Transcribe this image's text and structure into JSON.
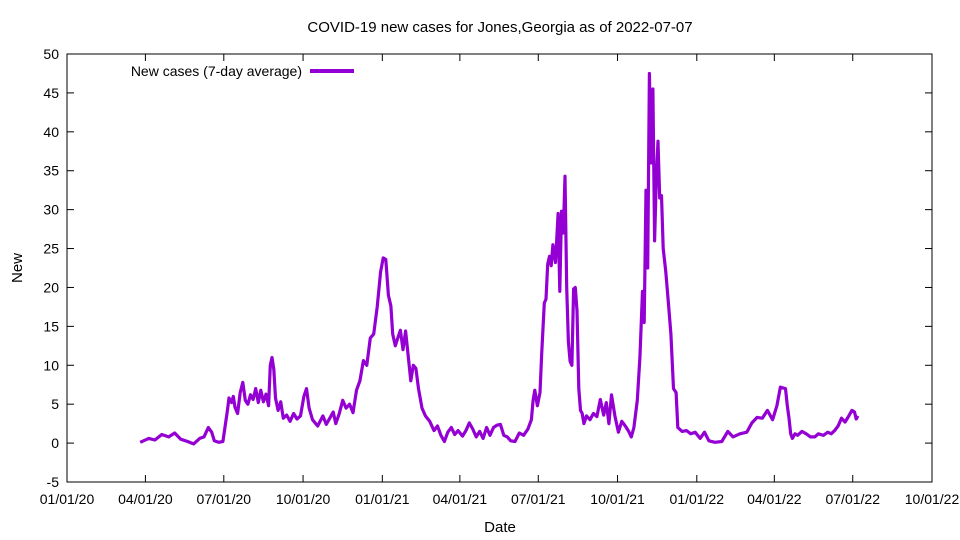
{
  "chart_data": {
    "type": "line",
    "title": "COVID-19 new cases for Jones,Georgia as of 2022-07-07",
    "xlabel": "Date",
    "ylabel": "New",
    "xlim": [
      "2020-01-01",
      "2022-10-01"
    ],
    "ylim": [
      -5,
      50
    ],
    "x_ticks": [
      "01/01/20",
      "04/01/20",
      "07/01/20",
      "10/01/20",
      "01/01/21",
      "04/01/21",
      "07/01/21",
      "10/01/21",
      "01/01/22",
      "04/01/22",
      "07/01/22",
      "10/01/22"
    ],
    "x_tick_dates": [
      "2020-01-01",
      "2020-04-01",
      "2020-07-01",
      "2020-10-01",
      "2021-01-01",
      "2021-04-01",
      "2021-07-01",
      "2021-10-01",
      "2022-01-01",
      "2022-04-01",
      "2022-07-01",
      "2022-10-01"
    ],
    "y_ticks": [
      -5,
      0,
      5,
      10,
      15,
      20,
      25,
      30,
      35,
      40,
      45,
      50
    ],
    "grid": false,
    "legend_position": "top-left",
    "series": [
      {
        "name": "New cases (7-day average)",
        "color": "#9400d3",
        "points": [
          [
            "2020-03-26",
            0.1
          ],
          [
            "2020-04-05",
            0.6
          ],
          [
            "2020-04-12",
            0.4
          ],
          [
            "2020-04-20",
            1.1
          ],
          [
            "2020-04-28",
            0.8
          ],
          [
            "2020-05-05",
            1.3
          ],
          [
            "2020-05-12",
            0.5
          ],
          [
            "2020-05-20",
            0.2
          ],
          [
            "2020-05-27",
            -0.1
          ],
          [
            "2020-06-03",
            0.6
          ],
          [
            "2020-06-08",
            0.8
          ],
          [
            "2020-06-13",
            2.0
          ],
          [
            "2020-06-17",
            1.4
          ],
          [
            "2020-06-20",
            0.3
          ],
          [
            "2020-06-25",
            0.1
          ],
          [
            "2020-06-30",
            0.2
          ],
          [
            "2020-07-02",
            1.8
          ],
          [
            "2020-07-05",
            4.0
          ],
          [
            "2020-07-07",
            5.8
          ],
          [
            "2020-07-10",
            5.2
          ],
          [
            "2020-07-12",
            6.0
          ],
          [
            "2020-07-14",
            4.6
          ],
          [
            "2020-07-17",
            3.8
          ],
          [
            "2020-07-20",
            6.5
          ],
          [
            "2020-07-23",
            7.8
          ],
          [
            "2020-07-26",
            5.5
          ],
          [
            "2020-07-29",
            5.0
          ],
          [
            "2020-08-01",
            6.2
          ],
          [
            "2020-08-04",
            5.6
          ],
          [
            "2020-08-07",
            7.0
          ],
          [
            "2020-08-10",
            5.2
          ],
          [
            "2020-08-13",
            6.8
          ],
          [
            "2020-08-16",
            5.3
          ],
          [
            "2020-08-19",
            6.3
          ],
          [
            "2020-08-22",
            4.8
          ],
          [
            "2020-08-24",
            10.0
          ],
          [
            "2020-08-26",
            11.0
          ],
          [
            "2020-08-28",
            9.5
          ],
          [
            "2020-08-30",
            5.8
          ],
          [
            "2020-09-02",
            4.2
          ],
          [
            "2020-09-05",
            5.3
          ],
          [
            "2020-09-08",
            3.2
          ],
          [
            "2020-09-12",
            3.6
          ],
          [
            "2020-09-16",
            2.8
          ],
          [
            "2020-09-20",
            3.8
          ],
          [
            "2020-09-24",
            3.1
          ],
          [
            "2020-09-28",
            3.5
          ],
          [
            "2020-10-02",
            6.0
          ],
          [
            "2020-10-05",
            7.0
          ],
          [
            "2020-10-08",
            4.5
          ],
          [
            "2020-10-12",
            3.0
          ],
          [
            "2020-10-18",
            2.2
          ],
          [
            "2020-10-24",
            3.5
          ],
          [
            "2020-10-28",
            2.4
          ],
          [
            "2020-11-01",
            3.2
          ],
          [
            "2020-11-05",
            4.0
          ],
          [
            "2020-11-08",
            2.5
          ],
          [
            "2020-11-12",
            3.8
          ],
          [
            "2020-11-16",
            5.5
          ],
          [
            "2020-11-20",
            4.5
          ],
          [
            "2020-11-24",
            5.0
          ],
          [
            "2020-11-28",
            3.9
          ],
          [
            "2020-12-02",
            6.8
          ],
          [
            "2020-12-06",
            8.0
          ],
          [
            "2020-12-10",
            10.6
          ],
          [
            "2020-12-14",
            10.0
          ],
          [
            "2020-12-18",
            13.5
          ],
          [
            "2020-12-22",
            14.0
          ],
          [
            "2020-12-26",
            17.5
          ],
          [
            "2020-12-30",
            22.0
          ],
          [
            "2021-01-02",
            23.8
          ],
          [
            "2021-01-05",
            23.6
          ],
          [
            "2021-01-08",
            19.0
          ],
          [
            "2021-01-11",
            17.6
          ],
          [
            "2021-01-13",
            14.0
          ],
          [
            "2021-01-16",
            12.5
          ],
          [
            "2021-01-19",
            13.5
          ],
          [
            "2021-01-22",
            14.5
          ],
          [
            "2021-01-25",
            12.0
          ],
          [
            "2021-01-28",
            14.4
          ],
          [
            "2021-01-31",
            11.2
          ],
          [
            "2021-02-03",
            8.0
          ],
          [
            "2021-02-06",
            10.0
          ],
          [
            "2021-02-09",
            9.6
          ],
          [
            "2021-02-12",
            7.0
          ],
          [
            "2021-02-16",
            4.5
          ],
          [
            "2021-02-20",
            3.5
          ],
          [
            "2021-02-25",
            2.8
          ],
          [
            "2021-03-02",
            1.6
          ],
          [
            "2021-03-06",
            2.2
          ],
          [
            "2021-03-10",
            1.0
          ],
          [
            "2021-03-14",
            0.2
          ],
          [
            "2021-03-18",
            1.4
          ],
          [
            "2021-03-22",
            2.0
          ],
          [
            "2021-03-26",
            1.1
          ],
          [
            "2021-03-30",
            1.6
          ],
          [
            "2021-04-04",
            0.9
          ],
          [
            "2021-04-08",
            1.6
          ],
          [
            "2021-04-12",
            2.6
          ],
          [
            "2021-04-16",
            1.8
          ],
          [
            "2021-04-20",
            0.8
          ],
          [
            "2021-04-24",
            1.5
          ],
          [
            "2021-04-28",
            0.6
          ],
          [
            "2021-05-02",
            2.0
          ],
          [
            "2021-05-06",
            1.0
          ],
          [
            "2021-05-10",
            2.0
          ],
          [
            "2021-05-14",
            2.3
          ],
          [
            "2021-05-18",
            2.4
          ],
          [
            "2021-05-22",
            1.0
          ],
          [
            "2021-05-26",
            0.8
          ],
          [
            "2021-05-30",
            0.3
          ],
          [
            "2021-06-04",
            0.2
          ],
          [
            "2021-06-09",
            1.3
          ],
          [
            "2021-06-14",
            1.0
          ],
          [
            "2021-06-19",
            1.8
          ],
          [
            "2021-06-23",
            3.0
          ],
          [
            "2021-06-25",
            5.5
          ],
          [
            "2021-06-27",
            6.8
          ],
          [
            "2021-06-30",
            4.8
          ],
          [
            "2021-07-03",
            6.5
          ],
          [
            "2021-07-05",
            11.5
          ],
          [
            "2021-07-08",
            18.0
          ],
          [
            "2021-07-10",
            18.5
          ],
          [
            "2021-07-12",
            23.0
          ],
          [
            "2021-07-14",
            24.0
          ],
          [
            "2021-07-16",
            22.8
          ],
          [
            "2021-07-18",
            25.5
          ],
          [
            "2021-07-21",
            23.2
          ],
          [
            "2021-07-24",
            29.5
          ],
          [
            "2021-07-26",
            19.5
          ],
          [
            "2021-07-28",
            29.8
          ],
          [
            "2021-07-30",
            27.0
          ],
          [
            "2021-08-01",
            34.3
          ],
          [
            "2021-08-03",
            20.0
          ],
          [
            "2021-08-05",
            13.0
          ],
          [
            "2021-08-07",
            10.5
          ],
          [
            "2021-08-09",
            10.0
          ],
          [
            "2021-08-11",
            19.8
          ],
          [
            "2021-08-13",
            20.0
          ],
          [
            "2021-08-15",
            17.0
          ],
          [
            "2021-08-17",
            7.0
          ],
          [
            "2021-08-19",
            4.2
          ],
          [
            "2021-08-21",
            3.8
          ],
          [
            "2021-08-23",
            2.5
          ],
          [
            "2021-08-26",
            3.5
          ],
          [
            "2021-08-30",
            3.0
          ],
          [
            "2021-09-03",
            3.8
          ],
          [
            "2021-09-07",
            3.4
          ],
          [
            "2021-09-11",
            5.6
          ],
          [
            "2021-09-15",
            3.6
          ],
          [
            "2021-09-18",
            5.2
          ],
          [
            "2021-09-21",
            2.5
          ],
          [
            "2021-09-24",
            6.2
          ],
          [
            "2021-09-28",
            3.5
          ],
          [
            "2021-10-02",
            1.4
          ],
          [
            "2021-10-06",
            2.8
          ],
          [
            "2021-10-10",
            2.2
          ],
          [
            "2021-10-14",
            1.5
          ],
          [
            "2021-10-17",
            0.8
          ],
          [
            "2021-10-20",
            2.0
          ],
          [
            "2021-10-24",
            5.5
          ],
          [
            "2021-10-27",
            11.0
          ],
          [
            "2021-10-30",
            19.5
          ],
          [
            "2021-11-01",
            15.5
          ],
          [
            "2021-11-03",
            32.5
          ],
          [
            "2021-11-05",
            22.5
          ],
          [
            "2021-11-07",
            47.5
          ],
          [
            "2021-11-09",
            36.0
          ],
          [
            "2021-11-11",
            45.5
          ],
          [
            "2021-11-13",
            26.0
          ],
          [
            "2021-11-15",
            34.0
          ],
          [
            "2021-11-17",
            38.8
          ],
          [
            "2021-11-19",
            31.5
          ],
          [
            "2021-11-21",
            31.8
          ],
          [
            "2021-11-23",
            25.0
          ],
          [
            "2021-11-26",
            22.0
          ],
          [
            "2021-11-29",
            18.0
          ],
          [
            "2021-12-02",
            14.0
          ],
          [
            "2021-12-05",
            7.0
          ],
          [
            "2021-12-08",
            6.5
          ],
          [
            "2021-12-10",
            2.0
          ],
          [
            "2021-12-15",
            1.5
          ],
          [
            "2021-12-20",
            1.6
          ],
          [
            "2021-12-25",
            1.2
          ],
          [
            "2021-12-30",
            1.4
          ],
          [
            "2022-01-05",
            0.6
          ],
          [
            "2022-01-10",
            1.4
          ],
          [
            "2022-01-15",
            0.3
          ],
          [
            "2022-01-22",
            0.1
          ],
          [
            "2022-01-30",
            0.2
          ],
          [
            "2022-02-06",
            1.5
          ],
          [
            "2022-02-12",
            0.8
          ],
          [
            "2022-02-20",
            1.2
          ],
          [
            "2022-02-28",
            1.4
          ],
          [
            "2022-03-06",
            2.6
          ],
          [
            "2022-03-12",
            3.3
          ],
          [
            "2022-03-18",
            3.2
          ],
          [
            "2022-03-24",
            4.2
          ],
          [
            "2022-03-30",
            3.0
          ],
          [
            "2022-04-04",
            4.8
          ],
          [
            "2022-04-08",
            7.2
          ],
          [
            "2022-04-14",
            7.0
          ],
          [
            "2022-04-16",
            4.8
          ],
          [
            "2022-04-18",
            3.2
          ],
          [
            "2022-04-20",
            1.2
          ],
          [
            "2022-04-22",
            0.6
          ],
          [
            "2022-04-25",
            1.2
          ],
          [
            "2022-04-28",
            1.0
          ],
          [
            "2022-05-03",
            1.5
          ],
          [
            "2022-05-08",
            1.2
          ],
          [
            "2022-05-13",
            0.8
          ],
          [
            "2022-05-18",
            0.8
          ],
          [
            "2022-05-22",
            1.2
          ],
          [
            "2022-05-28",
            1.0
          ],
          [
            "2022-06-02",
            1.4
          ],
          [
            "2022-06-06",
            1.2
          ],
          [
            "2022-06-10",
            1.6
          ],
          [
            "2022-06-14",
            2.2
          ],
          [
            "2022-06-18",
            3.2
          ],
          [
            "2022-06-22",
            2.7
          ],
          [
            "2022-06-26",
            3.4
          ],
          [
            "2022-06-30",
            4.2
          ],
          [
            "2022-07-03",
            4.0
          ],
          [
            "2022-07-05",
            3.1
          ],
          [
            "2022-07-07",
            3.5
          ]
        ]
      }
    ]
  }
}
